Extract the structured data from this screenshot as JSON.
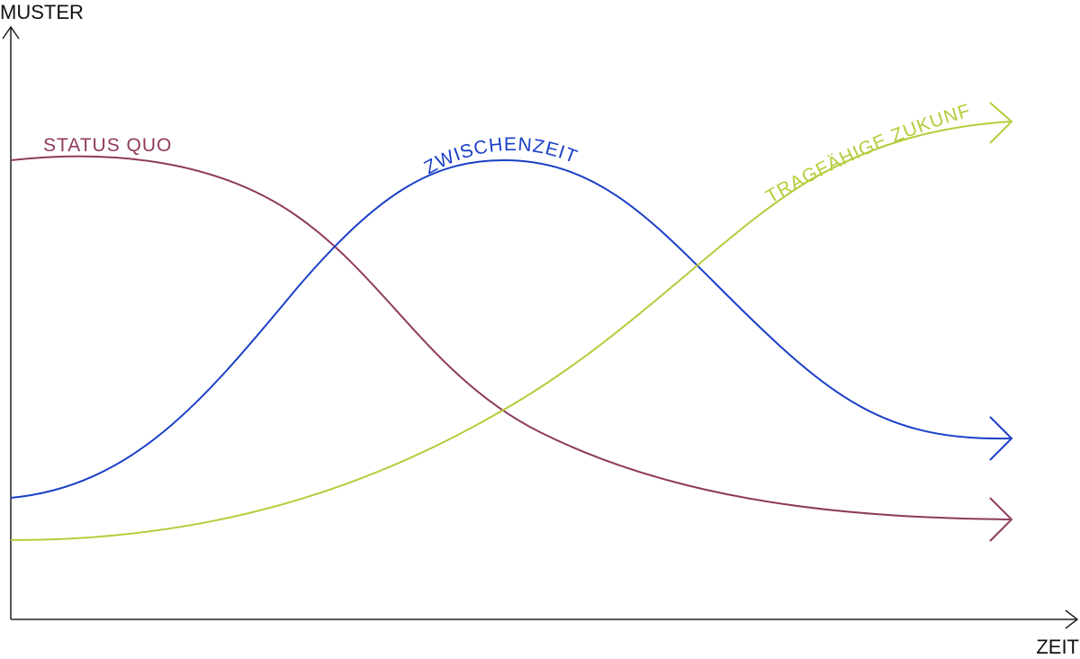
{
  "axes": {
    "y_label": "MUSTER",
    "x_label": "ZEIT"
  },
  "curves": [
    {
      "label": "STATUS QUO"
    },
    {
      "label": "ZWISCHENZEIT"
    },
    {
      "label": "TRAGFÄHIGE ZUKUNFT"
    }
  ]
}
